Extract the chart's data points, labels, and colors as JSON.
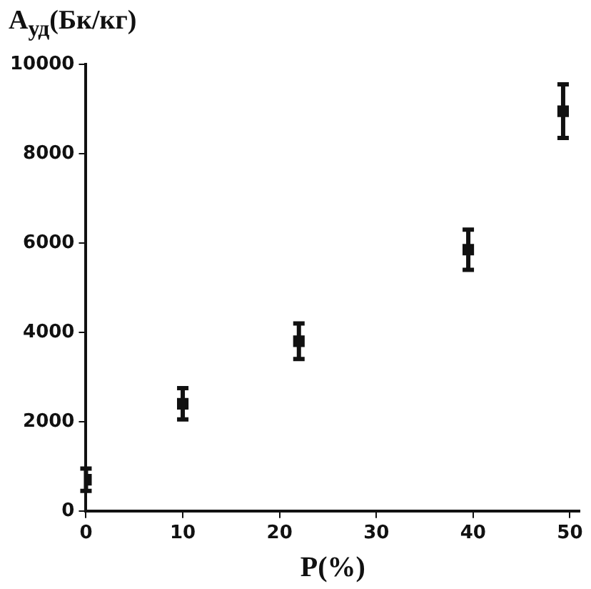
{
  "chart_data": {
    "type": "scatter",
    "xlabel": "P(%)",
    "ylabel": "A$_{уд}$(Бк/кг)",
    "x": [
      0,
      10,
      22,
      39.5,
      49.3
    ],
    "values": [
      700,
      2400,
      3800,
      5850,
      8950
    ],
    "errors": [
      250,
      350,
      400,
      450,
      600
    ],
    "color": "#111111",
    "marker": "square",
    "grid": false,
    "legend": false,
    "xlim": [
      0,
      51
    ],
    "xticks": [
      0,
      10,
      20,
      30,
      40,
      50
    ],
    "ylim": [
      0,
      10000
    ],
    "yticks": [
      0,
      2000,
      4000,
      6000,
      8000,
      10000
    ]
  }
}
